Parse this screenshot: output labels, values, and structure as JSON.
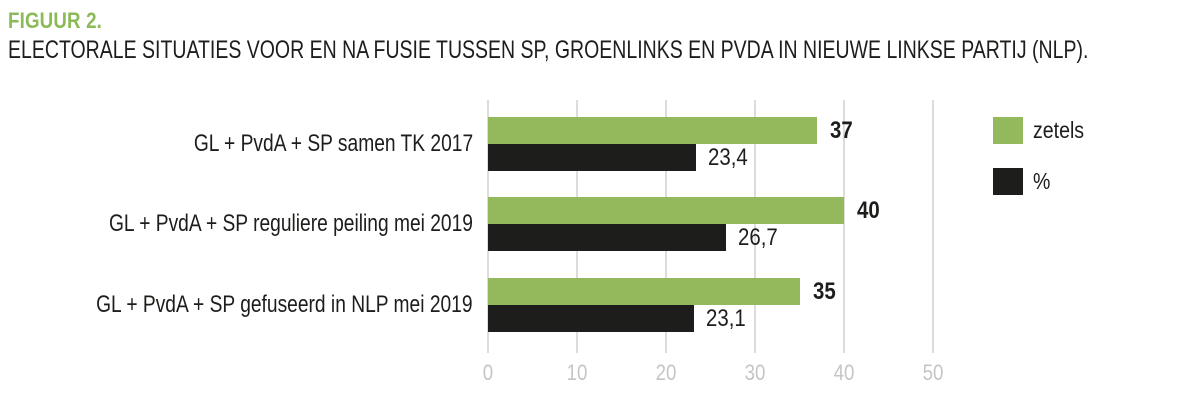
{
  "header": {
    "title": "FIGUUR 2.",
    "subtitle": "ELECTORALE SITUATIES VOOR EN NA FUSIE TUSSEN SP, GROENLINKS EN PVDA IN NIEUWE LINKSE PARTIJ (NLP)."
  },
  "colors": {
    "bar_green": "#94b85c",
    "bar_black": "#1d1d1b",
    "title_green": "#8cba57",
    "gridline": "#dcdcdc",
    "tick_text": "#c5c5c5"
  },
  "legend": {
    "items": [
      {
        "label": "zetels",
        "color": "#94b85c"
      },
      {
        "label": "%",
        "color": "#1d1d1b"
      }
    ]
  },
  "chart_data": {
    "type": "bar",
    "orientation": "horizontal",
    "title": "FIGUUR 2.",
    "subtitle": "ELECTORALE SITUATIES VOOR EN NA FUSIE TUSSEN SP, GROENLINKS EN PVDA IN NIEUWE LINKSE PARTIJ (NLP).",
    "categories": [
      "GL + PvdA + SP samen TK 2017",
      "GL + PvdA + SP reguliere peiling mei 2019",
      "GL + PvdA + SP gefuseerd in NLP mei 2019"
    ],
    "series": [
      {
        "name": "zetels",
        "color": "#94b85c",
        "values": [
          37,
          40,
          35
        ],
        "value_labels": [
          "37",
          "40",
          "35"
        ],
        "label_bold": true
      },
      {
        "name": "%",
        "color": "#1d1d1b",
        "values": [
          23.4,
          26.7,
          23.1
        ],
        "value_labels": [
          "23,4",
          "26,7",
          "23,1"
        ],
        "label_bold": false
      }
    ],
    "xlim": [
      0,
      50
    ],
    "xticks": [
      0,
      10,
      20,
      30,
      40,
      50
    ],
    "grid": true,
    "legend_position": "top-right"
  }
}
